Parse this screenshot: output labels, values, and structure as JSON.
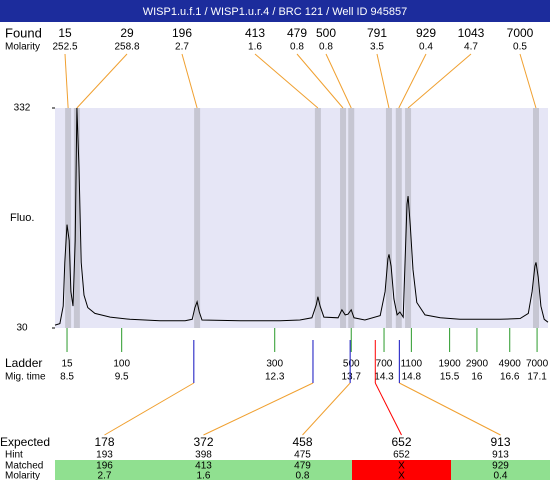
{
  "header": {
    "title": "WISP1.u.f.1 / WISP1.u.r.4 / BRC 121 / Well ID 945857"
  },
  "found": {
    "label": "Found",
    "molarity_label": "Molarity",
    "sizes": [
      15,
      29,
      196,
      413,
      479,
      500,
      791,
      929,
      1043,
      7000
    ],
    "molarities": [
      252.5,
      258.8,
      2.7,
      1.6,
      0.8,
      0.8,
      3.5,
      0.4,
      4.7,
      0.5
    ],
    "times": [
      8.52,
      8.68,
      10.88,
      13.09,
      13.55,
      13.7,
      14.39,
      14.57,
      14.74,
      17.08
    ]
  },
  "chart_data": {
    "type": "line",
    "ylabel": "Fluo.",
    "ylim": [
      30,
      332
    ],
    "yticks": [
      30,
      332
    ],
    "xlim": [
      8.28,
      17.3
    ],
    "color": "#000000",
    "x": [
      8.28,
      8.37,
      8.43,
      8.46,
      8.5,
      8.54,
      8.57,
      8.61,
      8.65,
      8.68,
      8.72,
      8.76,
      8.81,
      8.88,
      9.01,
      9.29,
      9.65,
      10.2,
      10.66,
      10.79,
      10.84,
      10.88,
      10.92,
      10.97,
      11.67,
      12.4,
      12.76,
      12.98,
      13.06,
      13.09,
      13.13,
      13.2,
      13.46,
      13.53,
      13.59,
      13.64,
      13.7,
      13.75,
      13.95,
      14.23,
      14.32,
      14.37,
      14.39,
      14.43,
      14.48,
      14.54,
      14.59,
      14.65,
      14.68,
      14.72,
      14.74,
      14.78,
      14.83,
      14.9,
      15.05,
      15.33,
      15.69,
      16.06,
      16.42,
      16.79,
      16.94,
      17.01,
      17.06,
      17.08,
      17.12,
      17.17,
      17.23,
      17.3
    ],
    "values": [
      34,
      36,
      60,
      120,
      172,
      150,
      80,
      60,
      150,
      332,
      250,
      120,
      75,
      58,
      50,
      45,
      42,
      40,
      40,
      42,
      58,
      66,
      52,
      41,
      40,
      40,
      41,
      44,
      62,
      73,
      60,
      45,
      44,
      55,
      48,
      49,
      55,
      44,
      41,
      47,
      80,
      125,
      131,
      115,
      70,
      48,
      52,
      45,
      110,
      200,
      211,
      170,
      110,
      65,
      48,
      44,
      42,
      42,
      42,
      43,
      50,
      80,
      115,
      120,
      100,
      60,
      42,
      38
    ]
  },
  "ladder": {
    "label": "Ladder",
    "time_label": "Mig. time",
    "sizes": [
      15,
      100,
      300,
      500,
      700,
      1100,
      1900,
      2900,
      4900,
      7000
    ],
    "times": [
      8.5,
      9.5,
      12.3,
      13.7,
      14.3,
      14.8,
      15.5,
      16,
      16.6,
      17.1
    ]
  },
  "expected": {
    "label": "Expected",
    "hint_label": "Hint",
    "matched_label": "Matched",
    "molarity_label": "Molarity",
    "sizes": [
      178,
      372,
      458,
      652,
      913
    ],
    "hints": [
      193,
      398,
      475,
      652,
      913
    ],
    "matched": [
      196,
      413,
      479,
      "X",
      929
    ],
    "molarities": [
      2.7,
      1.6,
      0.8,
      "X",
      0.4
    ],
    "times": [
      10.82,
      13.0,
      13.68,
      14.14,
      14.58
    ]
  }
}
